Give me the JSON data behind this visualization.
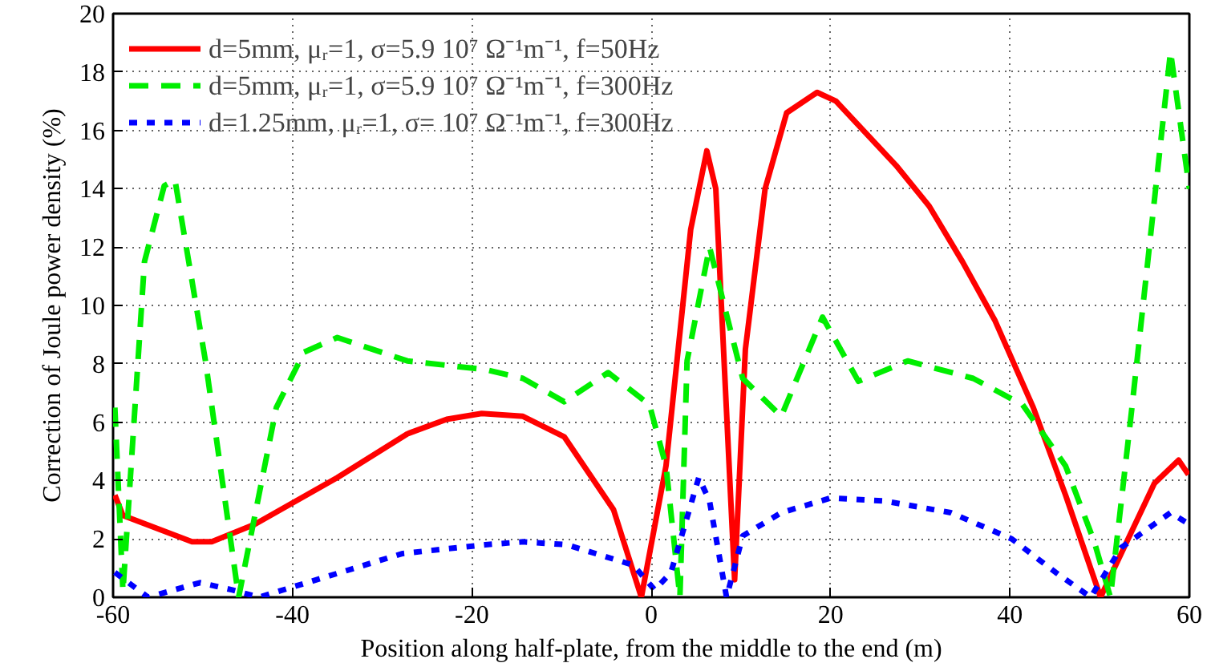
{
  "chart_data": {
    "type": "line",
    "xlabel": "Position along half-plate, from the middle to the end (m)",
    "ylabel": "Correction of Joule power density (%)",
    "xlim": [
      -60,
      60
    ],
    "ylim": [
      0,
      20
    ],
    "xticks": [
      -60,
      -40,
      -20,
      0,
      20,
      40,
      60
    ],
    "yticks": [
      0,
      2,
      4,
      6,
      8,
      10,
      12,
      14,
      16,
      18,
      20
    ],
    "grid": true,
    "legend": "top left",
    "series": [
      {
        "name": "d=5mm, μᵣ=1, σ=5.9 10⁷ Ω⁻¹m⁻¹, f=50Hz",
        "color": "#ff0000",
        "line_style": "solid",
        "x": [
          -59.8,
          -58.9,
          -51.2,
          -49,
          -44.2,
          -35,
          -27.2,
          -22.8,
          -18.9,
          -14.3,
          -9.7,
          -4.2,
          -1.1,
          1.65,
          4.4,
          6.2,
          7.2,
          9.3,
          10.5,
          12.7,
          15.1,
          18.5,
          20.6,
          27.3,
          31,
          34.7,
          38.3,
          42.6,
          46.2,
          50.1,
          52.4,
          56.1,
          58.8,
          59.9
        ],
        "values": [
          3.5,
          2.8,
          1.9,
          1.9,
          2.5,
          4.1,
          5.6,
          6.1,
          6.3,
          6.2,
          5.5,
          3.0,
          0,
          4.5,
          12.6,
          15.3,
          14,
          0.6,
          8.5,
          14,
          16.6,
          17.3,
          17.0,
          14.8,
          13.4,
          11.5,
          9.5,
          6.5,
          3.5,
          0,
          1.5,
          3.9,
          4.7,
          4.2
        ]
      },
      {
        "name": "d=5mm, μᵣ=1, σ=5.9 10⁷ Ω⁻¹m⁻¹, f=300Hz",
        "color": "#00ee00",
        "line_style": "dashed",
        "x": [
          -59.8,
          -58.9,
          -56.5,
          -54.3,
          -53.1,
          -49.7,
          -46,
          -41.8,
          -38.7,
          -35,
          -27.2,
          -18.5,
          -14.3,
          -9.7,
          -4.8,
          -0.2,
          1.65,
          3.2,
          4,
          6.5,
          10.2,
          14.5,
          19.1,
          23.1,
          28.6,
          35.9,
          41.4,
          46.2,
          49.4,
          51.2,
          53.6,
          57.9,
          60
        ],
        "values": [
          6.5,
          0.2,
          11.5,
          14.1,
          14.3,
          8.1,
          0,
          6.5,
          8.4,
          8.9,
          8.1,
          7.8,
          7.5,
          6.7,
          7.7,
          6.6,
          4.5,
          0,
          8.1,
          12.0,
          7.5,
          6.2,
          9.6,
          7.4,
          8.1,
          7.5,
          6.6,
          4.5,
          1.9,
          0,
          6.5,
          18.7,
          14
        ]
      },
      {
        "name": "d=1.25mm, μᵣ=1, σ= 10⁷ Ω⁻¹m⁻¹, f=300Hz",
        "color": "#0000ff",
        "line_style": "dotted",
        "x": [
          -59.8,
          -56.1,
          -50.3,
          -46.7,
          -43.7,
          -40,
          -27.7,
          -18.5,
          -14.3,
          -9.4,
          -2,
          0.4,
          2.2,
          5.3,
          6.5,
          8.4,
          10.2,
          14.5,
          20,
          26,
          33.4,
          40.2,
          45.1,
          49,
          52.4,
          57.9,
          60
        ],
        "values": [
          0.85,
          0,
          0.5,
          0.25,
          0,
          0.35,
          1.5,
          1.8,
          1.9,
          1.8,
          1.1,
          0.25,
          0.85,
          4.1,
          3.3,
          0,
          2.1,
          2.9,
          3.4,
          3.3,
          2.9,
          2.0,
          0.85,
          0,
          1.7,
          2.9,
          2.5
        ]
      }
    ]
  }
}
